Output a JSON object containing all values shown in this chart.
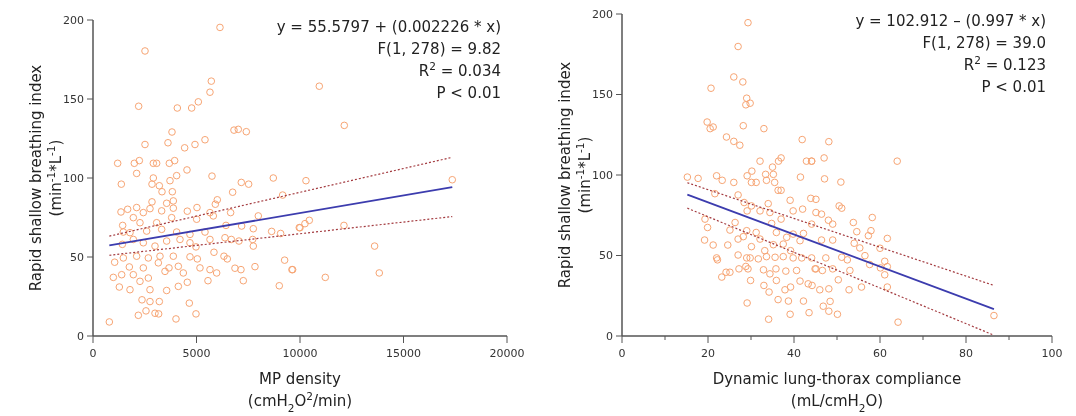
{
  "chart_data": [
    {
      "type": "scatter",
      "xlabel": "MP density\n(cmH$_{2}$O$^{2}$/min)",
      "ylabel": "Rapid shallow breathing index\n(min$^{-1}$*L$^{-1}$)",
      "xlim": [
        0,
        20000
      ],
      "xticks": [
        0,
        5000,
        10000,
        15000,
        20000
      ],
      "ylim": [
        0,
        200
      ],
      "yticks": [
        0,
        50,
        100,
        150,
        200
      ],
      "grid": false,
      "annotations": [
        "y = 55.5797 + (0.002226 * x)",
        "F(1, 278) = 9.82",
        "R$^{2}$ = 0.034",
        "P < 0.01"
      ],
      "series": [
        {
          "marker": "circle",
          "color": "#f7a574",
          "x": [
            6134,
            2512,
            5715,
            5651,
            2206,
            4073,
            4766,
            5088,
            3816,
            6810,
            7019,
            7406,
            2512,
            3622,
            4427,
            4927,
            5410,
            1191,
            1996,
            2238,
            2914,
            3075,
            3687,
            3944,
            2109,
            4540,
            1368,
            2914,
            2850,
            3204,
            3719,
            4041,
            5748,
            3333,
            3832,
            6746,
            7164,
            7519,
            8710,
            9161,
            2850,
            3558,
            3880,
            6005,
            5909,
            5023,
            1352,
            1674,
            2109,
            2431,
            2753,
            3317,
            3880,
            4556,
            5651,
            6649,
            7985,
            1433,
            1948,
            2270,
            3075,
            3800,
            5007,
            5812,
            6424,
            7181,
            7744,
            8630,
            9064,
            9966,
            1465,
            1787,
            2592,
            3317,
            4041,
            4685,
            5410,
            1417,
            1948,
            2431,
            2995,
            3558,
            4202,
            4685,
            5651,
            6375,
            6681,
            7051,
            7712,
            7744,
            4975,
            5844,
            6327,
            6488,
            1465,
            2109,
            2673,
            3236,
            3880,
            4685,
            5039,
            1046,
            1755,
            2431,
            3156,
            3671,
            4122,
            5168,
            5651,
            6858,
            7148,
            7825,
            9257,
            9611,
            982,
            1385,
            1948,
            2673,
            3478,
            4363,
            5973,
            1272,
            1787,
            2270,
            2753,
            3558,
            4122,
            4556,
            5554,
            7261,
            8999,
            2367,
            2753,
            3204,
            4653,
            2560,
            2190,
            2995,
            3172,
            4009,
            4975,
            789,
            10932,
            12139,
            10288,
            17356,
            9644,
            9998,
            10240,
            10449,
            12123,
            13604,
            11222,
            13830
          ],
          "values": [
            195.3,
            180.4,
            161.3,
            154.3,
            145.4,
            144.3,
            144.3,
            148.2,
            129.1,
            130.3,
            130.8,
            129.3,
            121.2,
            122.3,
            119.1,
            121.2,
            124.2,
            109.3,
            109.3,
            111.0,
            109.3,
            109.3,
            109.3,
            111.0,
            102.9,
            105.1,
            96.1,
            100.0,
            96.1,
            95.1,
            98.3,
            101.5,
            101.2,
            91.3,
            91.3,
            91.0,
            97.2,
            96.1,
            100.0,
            89.2,
            84.9,
            84.0,
            85.5,
            86.2,
            83.4,
            81.3,
            78.5,
            80.2,
            81.3,
            78.1,
            80.6,
            79.2,
            80.9,
            79.0,
            78.1,
            78.1,
            76.0,
            70.0,
            74.9,
            71.7,
            71.7,
            74.9,
            73.9,
            76.0,
            70.0,
            69.6,
            67.9,
            66.2,
            64.9,
            68.6,
            65.8,
            65.4,
            66.4,
            67.5,
            65.8,
            64.3,
            65.8,
            58.0,
            61.1,
            59.0,
            56.9,
            60.1,
            61.1,
            59.0,
            61.1,
            62.2,
            61.1,
            60.1,
            61.1,
            56.9,
            56.4,
            53.0,
            50.5,
            48.8,
            49.4,
            50.5,
            49.4,
            50.5,
            50.5,
            50.1,
            48.8,
            46.7,
            43.7,
            43.1,
            46.3,
            43.1,
            44.1,
            43.1,
            42.0,
            42.9,
            42.0,
            43.9,
            48.0,
            42.0,
            37.1,
            38.8,
            38.8,
            36.7,
            40.9,
            39.9,
            39.9,
            31.0,
            29.3,
            34.6,
            29.3,
            28.8,
            31.4,
            34.0,
            35.0,
            35.0,
            31.8,
            22.9,
            21.8,
            21.8,
            20.8,
            15.9,
            13.1,
            14.4,
            14.0,
            10.8,
            14.0,
            8.9,
            158.1,
            133.3,
            98.3,
            98.9,
            42.0,
            68.5,
            71.1,
            73.2,
            70.0,
            56.9,
            37.1,
            39.9
          ]
        },
        {
          "type": "line",
          "color": "#3c3cae",
          "line_style": "solid",
          "x": [
            789,
            17356
          ],
          "values": [
            57.3,
            94.2
          ]
        },
        {
          "type": "line",
          "color": "#a33a3f",
          "line_style": "dotted",
          "x": [
            789,
            17356
          ],
          "values": [
            63.2,
            113.1
          ]
        },
        {
          "type": "line",
          "color": "#a33a3f",
          "line_style": "dotted",
          "x": [
            789,
            17356
          ],
          "values": [
            51.1,
            75.6
          ]
        }
      ]
    },
    {
      "type": "scatter",
      "xlabel": "Dynamic lung-thorax compliance\n(mL/cmH$_{2}$O)",
      "ylabel": "Rapid shallow breathing index\n(min$^{-1}$*L$^{-1}$)",
      "xlim": [
        0,
        100
      ],
      "xticks": [
        0,
        {
          "value": 10,
          "label": null
        },
        20,
        {
          "value": 30,
          "label": null
        },
        40,
        {
          "value": 50,
          "label": null
        },
        60,
        {
          "value": 70,
          "label": null
        },
        80,
        {
          "value": 90,
          "label": null
        },
        100
      ],
      "ylim": [
        0,
        200
      ],
      "yticks": [
        0,
        50,
        100,
        150,
        200
      ],
      "grid": false,
      "annotations": [
        "y = 102.912 – (0.997 * x)",
        "F(1, 278) = 39.0",
        "R$^{2}$ = 0.123",
        "P < 0.01"
      ],
      "series": [
        {
          "marker": "circle",
          "color": "#f7a574",
          "x": [
            29.3,
            27.0,
            26.0,
            28.1,
            20.7,
            29.0,
            29.8,
            28.8,
            19.8,
            20.5,
            21.2,
            28.2,
            33.0,
            24.3,
            26.0,
            27.4,
            41.9,
            32.1,
            35.0,
            37.0,
            36.4,
            42.9,
            44.1,
            15.2,
            17.7,
            22.0,
            23.3,
            26.0,
            29.1,
            30.2,
            30.1,
            31.2,
            33.4,
            33.6,
            35.2,
            35.5,
            36.3,
            37.0,
            41.5,
            21.6,
            27.0,
            28.4,
            29.1,
            30.1,
            32.1,
            34.0,
            34.4,
            37.0,
            39.1,
            39.8,
            42.0,
            43.9,
            45.1,
            19.3,
            19.9,
            25.1,
            26.3,
            29.0,
            31.2,
            34.8,
            35.9,
            38.3,
            39.8,
            42.2,
            44.1,
            19.2,
            21.2,
            24.6,
            27.0,
            28.2,
            30.1,
            32.1,
            33.2,
            35.2,
            37.5,
            39.2,
            41.4,
            22.0,
            22.2,
            27.0,
            29.0,
            29.8,
            31.7,
            33.6,
            35.6,
            37.5,
            39.8,
            41.8,
            44.1,
            23.2,
            24.2,
            25.1,
            27.2,
            28.8,
            29.3,
            29.9,
            32.9,
            34.4,
            35.8,
            38.1,
            40.6,
            44.9,
            33.0,
            34.2,
            35.9,
            37.9,
            39.2,
            41.4,
            43.3,
            44.2,
            29.1,
            36.3,
            38.7,
            42.2,
            39.1,
            43.5,
            34.1,
            48.1,
            47.0,
            64.0,
            44.1,
            47.1,
            50.9,
            45.1,
            50.5,
            51.1,
            46.4,
            49.0,
            48.0,
            53.8,
            58.2,
            54.6,
            57.9,
            57.3,
            61.7,
            54.0,
            55.3,
            60.0,
            49.0,
            46.4,
            47.4,
            51.1,
            52.4,
            56.5,
            61.1,
            45.1,
            46.6,
            49.0,
            53.0,
            57.6,
            61.7,
            60.1,
            61.1,
            50.3,
            52.8,
            55.7,
            61.7,
            46.0,
            48.1,
            46.8,
            48.4,
            48.1,
            50.1,
            64.2,
            86.5
          ],
          "values": [
            194.6,
            179.8,
            160.9,
            157.8,
            153.9,
            147.7,
            144.6,
            143.6,
            132.9,
            128.8,
            129.8,
            130.6,
            128.8,
            123.6,
            120.9,
            118.5,
            122.0,
            108.6,
            104.9,
            110.6,
            108.6,
            108.6,
            108.6,
            98.7,
            97.9,
            99.5,
            96.7,
            95.4,
            99.5,
            102.4,
            95.4,
            95.4,
            100.4,
            96.7,
            100.4,
            95.4,
            90.5,
            90.5,
            98.7,
            88.4,
            87.6,
            82.9,
            77.7,
            80.8,
            77.7,
            82.2,
            76.7,
            72.6,
            84.3,
            77.7,
            78.8,
            85.5,
            76.7,
            72.6,
            67.4,
            65.8,
            70.5,
            65.4,
            64.3,
            69.9,
            64.3,
            61.3,
            63.3,
            63.7,
            69.5,
            59.6,
            56.5,
            56.5,
            60.2,
            61.7,
            55.5,
            60.2,
            53.0,
            56.7,
            57.1,
            53.0,
            59.2,
            48.5,
            47.3,
            50.3,
            48.5,
            48.5,
            47.9,
            49.3,
            48.9,
            49.3,
            48.5,
            48.5,
            48.5,
            36.6,
            39.6,
            39.6,
            41.7,
            43.2,
            41.7,
            34.5,
            41.1,
            38.6,
            41.7,
            40.3,
            40.7,
            41.7,
            31.4,
            27.3,
            34.5,
            28.7,
            30.4,
            34.1,
            32.4,
            31.4,
            20.5,
            22.6,
            21.7,
            21.7,
            13.5,
            14.5,
            10.4,
            120.7,
            110.6,
            108.6,
            108.6,
            97.6,
            95.6,
            84.9,
            80.8,
            79.4,
            75.7,
            69.5,
            71.9,
            70.5,
            73.6,
            64.8,
            65.4,
            62.3,
            60.6,
            57.6,
            54.7,
            54.5,
            59.6,
            59.6,
            48.5,
            48.9,
            47.3,
            49.9,
            46.4,
            41.7,
            40.7,
            41.7,
            40.7,
            44.4,
            43.1,
            42.3,
            38.0,
            34.9,
            28.7,
            30.4,
            30.4,
            28.7,
            29.3,
            18.5,
            21.5,
            15.4,
            13.5,
            8.6,
            12.7
          ]
        },
        {
          "type": "line",
          "color": "#3c3cae",
          "line_style": "solid",
          "x": [
            15.2,
            86.5
          ],
          "values": [
            87.8,
            16.7
          ]
        },
        {
          "type": "line",
          "color": "#a33a3f",
          "line_style": "dotted",
          "x": [
            15.2,
            86.5
          ],
          "values": [
            95.2,
            31.4
          ]
        },
        {
          "type": "line",
          "color": "#a33a3f",
          "line_style": "dotted",
          "x": [
            15.2,
            86.5
          ],
          "values": [
            79.4,
            0.5
          ]
        }
      ]
    }
  ]
}
